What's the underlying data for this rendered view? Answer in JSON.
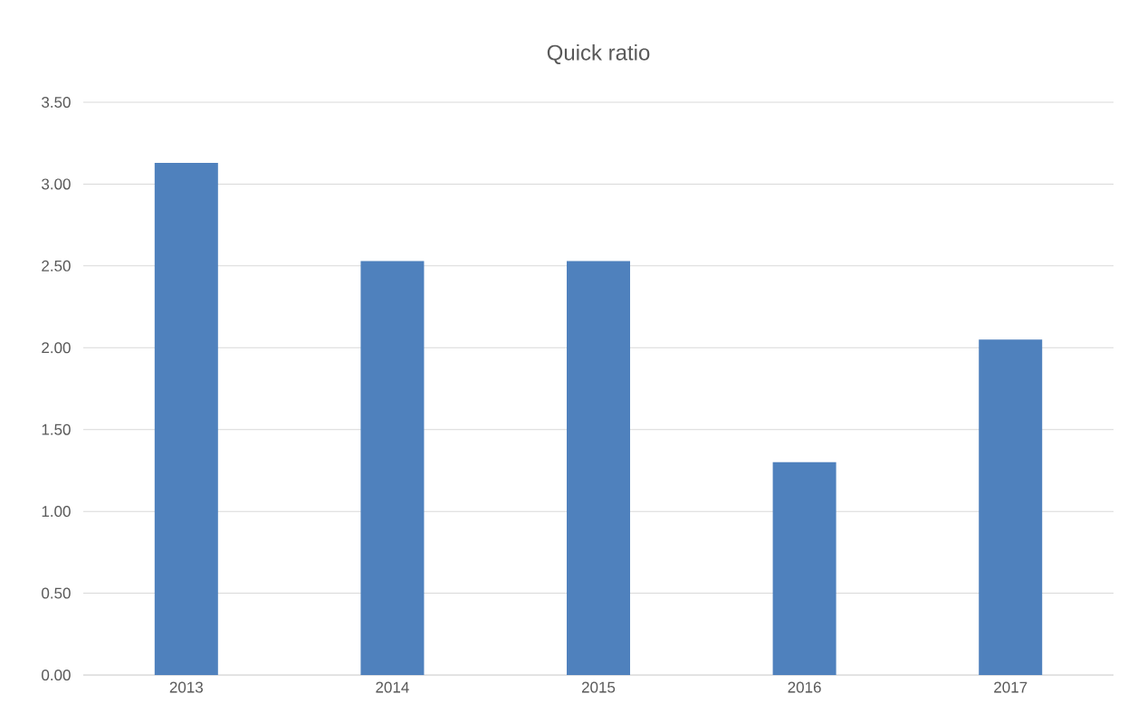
{
  "chart_data": {
    "type": "bar",
    "title": "Quick ratio",
    "categories": [
      "2013",
      "2014",
      "2015",
      "2016",
      "2017"
    ],
    "values": [
      3.13,
      2.53,
      2.53,
      1.3,
      2.05
    ],
    "color": "#4f81bd",
    "ylim": [
      0,
      3.5
    ],
    "yticks": [
      {
        "value": 0,
        "label": "0.00"
      },
      {
        "value": 0.5,
        "label": "0.50"
      },
      {
        "value": 1,
        "label": "1.00"
      },
      {
        "value": 1.5,
        "label": "1.50"
      },
      {
        "value": 2,
        "label": "2.00"
      },
      {
        "value": 2.5,
        "label": "2.50"
      },
      {
        "value": 3,
        "label": "3.00"
      },
      {
        "value": 3.5,
        "label": "3.50"
      }
    ],
    "grid": "y"
  }
}
